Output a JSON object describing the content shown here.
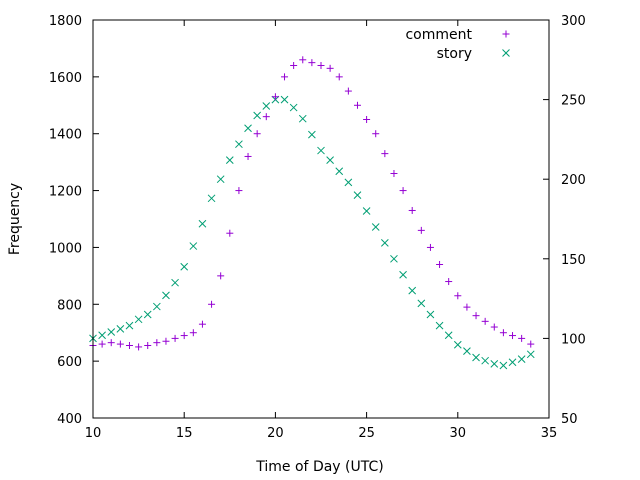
{
  "chart_data": {
    "type": "scatter",
    "title": "",
    "xlabel": "Time of Day (UTC)",
    "ylabel": "Frequency",
    "y2label": "",
    "xlim": [
      10,
      35
    ],
    "ylim": [
      400,
      1800
    ],
    "y2lim": [
      50,
      300
    ],
    "grid": false,
    "legend_position": "top-right",
    "x_ticks": [
      "10",
      "15",
      "20",
      "25",
      "30",
      "35"
    ],
    "y_ticks": [
      "400",
      "600",
      "800",
      "1000",
      "1200",
      "1400",
      "1600",
      "1800"
    ],
    "y2_ticks": [
      "50",
      "100",
      "150",
      "200",
      "250",
      "300"
    ],
    "colors": {
      "comment": "#9400D3",
      "story": "#009E73"
    },
    "series": [
      {
        "name": "comment",
        "marker": "plus",
        "axis": "y",
        "x": [
          10.0,
          10.5,
          11.0,
          11.5,
          12.0,
          12.5,
          13.0,
          13.5,
          14.0,
          14.5,
          15.0,
          15.5,
          16.0,
          16.5,
          17.0,
          17.5,
          18.0,
          18.5,
          19.0,
          19.5,
          20.0,
          20.5,
          21.0,
          21.5,
          22.0,
          22.5,
          23.0,
          23.5,
          24.0,
          24.5,
          25.0,
          25.5,
          26.0,
          26.5,
          27.0,
          27.5,
          28.0,
          28.5,
          29.0,
          29.5,
          30.0,
          30.5,
          31.0,
          31.5,
          32.0,
          32.5,
          33.0,
          33.5,
          34.0
        ],
        "values": [
          655,
          660,
          665,
          660,
          655,
          650,
          655,
          665,
          670,
          680,
          690,
          700,
          730,
          800,
          900,
          1050,
          1200,
          1320,
          1400,
          1460,
          1530,
          1600,
          1640,
          1660,
          1650,
          1640,
          1630,
          1600,
          1550,
          1500,
          1450,
          1400,
          1330,
          1260,
          1200,
          1130,
          1060,
          1000,
          940,
          880,
          830,
          790,
          760,
          740,
          720,
          700,
          690,
          680,
          660
        ]
      },
      {
        "name": "story",
        "marker": "cross",
        "axis": "y2",
        "x": [
          10.0,
          10.5,
          11.0,
          11.5,
          12.0,
          12.5,
          13.0,
          13.5,
          14.0,
          14.5,
          15.0,
          15.5,
          16.0,
          16.5,
          17.0,
          17.5,
          18.0,
          18.5,
          19.0,
          19.5,
          20.0,
          20.5,
          21.0,
          21.5,
          22.0,
          22.5,
          23.0,
          23.5,
          24.0,
          24.5,
          25.0,
          25.5,
          26.0,
          26.5,
          27.0,
          27.5,
          28.0,
          28.5,
          29.0,
          29.5,
          30.0,
          30.5,
          31.0,
          31.5,
          32.0,
          32.5,
          33.0,
          33.5,
          34.0
        ],
        "values": [
          100,
          102,
          104,
          106,
          108,
          112,
          115,
          120,
          127,
          135,
          145,
          158,
          172,
          188,
          200,
          212,
          222,
          232,
          240,
          246,
          250,
          250,
          245,
          238,
          228,
          218,
          212,
          205,
          198,
          190,
          180,
          170,
          160,
          150,
          140,
          130,
          122,
          115,
          108,
          102,
          96,
          92,
          88,
          86,
          84,
          83,
          85,
          87,
          90
        ]
      }
    ]
  }
}
